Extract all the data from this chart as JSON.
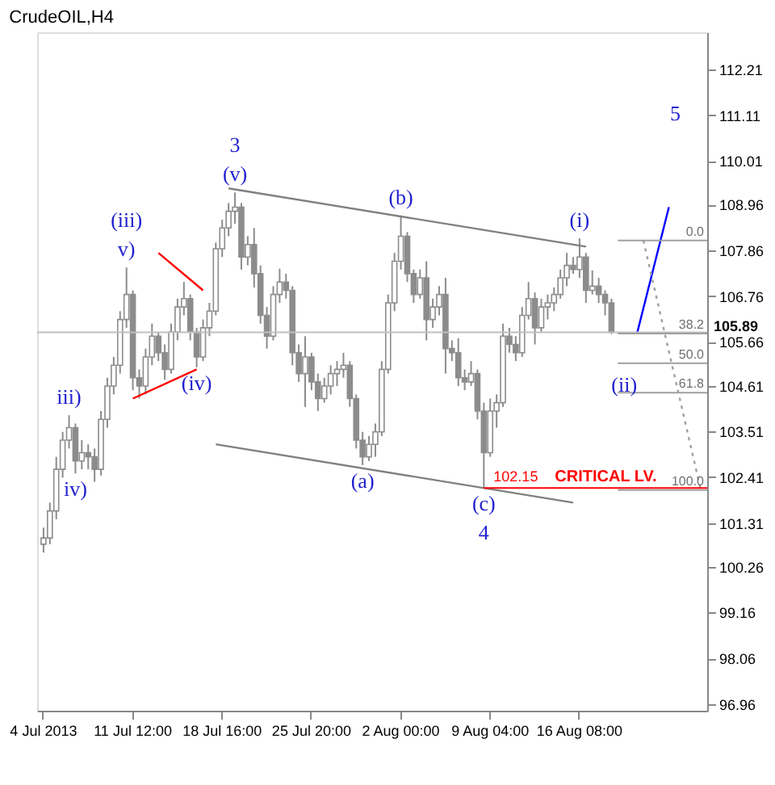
{
  "chart_data": {
    "type": "candlestick",
    "title": "CrudeOIL,H4",
    "color": "#8c8c8c",
    "categories": [
      "4 Jul 2013",
      null,
      null,
      null,
      null,
      null,
      null,
      null,
      null,
      null,
      null,
      null,
      null,
      null,
      "11 Jul 12:00",
      null,
      null,
      null,
      null,
      null,
      null,
      null,
      null,
      null,
      null,
      null,
      null,
      null,
      "18 Jul 16:00",
      null,
      null,
      null,
      null,
      null,
      null,
      null,
      null,
      null,
      null,
      null,
      null,
      null,
      "25 Jul 20:00",
      null,
      null,
      null,
      null,
      null,
      null,
      null,
      null,
      null,
      null,
      null,
      null,
      null,
      "2 Aug 00:00",
      null,
      null,
      null,
      null,
      null,
      null,
      null,
      null,
      null,
      null,
      null,
      null,
      null,
      "9 Aug 04:00",
      null,
      null,
      null,
      null,
      null,
      null,
      null,
      null,
      null,
      null,
      null,
      null,
      null,
      "16 Aug 08:00",
      null,
      null,
      null,
      null,
      null,
      null,
      null,
      null,
      null,
      null,
      null,
      null,
      null,
      null,
      null,
      null,
      null,
      null,
      null
    ],
    "ohlc": [
      [
        100.8,
        101.2,
        100.6,
        100.95
      ],
      [
        100.95,
        101.8,
        100.8,
        101.6
      ],
      [
        101.6,
        102.9,
        101.4,
        102.6
      ],
      [
        102.6,
        103.5,
        102.4,
        103.3
      ],
      [
        103.3,
        103.9,
        103.1,
        103.6
      ],
      [
        103.6,
        103.7,
        102.5,
        102.8
      ],
      [
        102.8,
        103.3,
        102.6,
        103.0
      ],
      [
        103.0,
        103.2,
        102.6,
        102.9
      ],
      [
        102.9,
        103.1,
        102.3,
        102.6
      ],
      [
        102.6,
        104.0,
        102.45,
        103.8
      ],
      [
        103.8,
        104.8,
        103.6,
        104.6
      ],
      [
        104.6,
        105.3,
        104.4,
        105.1
      ],
      [
        105.1,
        106.4,
        104.9,
        106.2
      ],
      [
        106.2,
        107.45,
        106.0,
        106.8
      ],
      [
        106.8,
        106.9,
        104.5,
        104.8
      ],
      [
        104.8,
        105.0,
        104.3,
        104.6
      ],
      [
        104.6,
        105.5,
        104.4,
        105.3
      ],
      [
        105.3,
        106.1,
        105.1,
        105.8
      ],
      [
        105.8,
        105.9,
        105.2,
        105.4
      ],
      [
        105.4,
        105.6,
        104.75,
        105.0
      ],
      [
        105.0,
        106.1,
        104.9,
        105.9
      ],
      [
        105.9,
        106.7,
        105.7,
        106.5
      ],
      [
        106.5,
        107.1,
        106.3,
        106.7
      ],
      [
        106.7,
        106.8,
        105.7,
        105.9
      ],
      [
        105.9,
        106.0,
        105.05,
        105.3
      ],
      [
        105.3,
        106.2,
        105.2,
        106.0
      ],
      [
        106.0,
        106.6,
        105.8,
        106.4
      ],
      [
        106.4,
        108.05,
        106.3,
        107.9
      ],
      [
        107.9,
        108.6,
        107.7,
        108.4
      ],
      [
        108.4,
        109.0,
        108.2,
        108.8
      ],
      [
        108.8,
        109.25,
        108.5,
        108.9
      ],
      [
        108.9,
        109.0,
        107.4,
        107.7
      ],
      [
        107.7,
        108.2,
        107.5,
        108.0
      ],
      [
        108.0,
        108.4,
        106.97,
        107.3
      ],
      [
        107.3,
        107.5,
        106.1,
        106.3
      ],
      [
        106.3,
        106.5,
        105.5,
        105.8
      ],
      [
        105.8,
        107.0,
        105.7,
        106.8
      ],
      [
        106.8,
        107.42,
        106.6,
        107.1
      ],
      [
        107.1,
        107.3,
        106.7,
        106.9
      ],
      [
        106.9,
        107.0,
        105.1,
        105.4
      ],
      [
        105.4,
        105.6,
        104.7,
        104.9
      ],
      [
        104.9,
        105.8,
        104.1,
        105.3
      ],
      [
        105.3,
        105.4,
        104.5,
        104.7
      ],
      [
        104.7,
        104.9,
        104.0,
        104.3
      ],
      [
        104.3,
        104.8,
        104.2,
        104.6
      ],
      [
        104.6,
        105.1,
        104.4,
        104.9
      ],
      [
        104.9,
        105.2,
        104.6,
        105.0
      ],
      [
        105.0,
        105.4,
        104.8,
        105.1
      ],
      [
        105.1,
        105.2,
        104.1,
        104.3
      ],
      [
        104.3,
        104.4,
        103.1,
        103.3
      ],
      [
        103.3,
        103.5,
        102.7,
        102.9
      ],
      [
        102.9,
        103.4,
        102.8,
        103.2
      ],
      [
        103.2,
        103.7,
        102.9,
        103.5
      ],
      [
        103.5,
        105.2,
        103.4,
        105.0
      ],
      [
        105.0,
        106.8,
        104.9,
        106.6
      ],
      [
        106.6,
        107.8,
        106.4,
        107.6
      ],
      [
        107.6,
        108.7,
        107.4,
        108.2
      ],
      [
        108.2,
        108.3,
        107.1,
        107.3
      ],
      [
        107.3,
        107.4,
        106.6,
        106.8
      ],
      [
        106.8,
        107.4,
        106.7,
        107.2
      ],
      [
        107.2,
        107.6,
        105.7,
        106.2
      ],
      [
        106.2,
        106.7,
        106.0,
        106.5
      ],
      [
        106.5,
        107.0,
        106.3,
        106.8
      ],
      [
        106.8,
        107.2,
        104.9,
        105.5
      ],
      [
        105.5,
        105.7,
        105.2,
        105.4
      ],
      [
        105.4,
        105.75,
        104.6,
        104.8
      ],
      [
        104.8,
        105.0,
        104.5,
        104.7
      ],
      [
        104.7,
        105.2,
        104.6,
        104.9
      ],
      [
        104.9,
        105.0,
        103.8,
        104.0
      ],
      [
        104.0,
        104.2,
        102.15,
        103.0
      ],
      [
        103.0,
        104.3,
        102.9,
        104.0
      ],
      [
        104.0,
        104.4,
        103.6,
        104.2
      ],
      [
        104.2,
        106.1,
        104.1,
        105.8
      ],
      [
        105.8,
        106.0,
        105.4,
        105.6
      ],
      [
        105.6,
        105.8,
        105.2,
        105.4
      ],
      [
        105.4,
        106.5,
        105.3,
        106.3
      ],
      [
        106.3,
        107.1,
        106.2,
        106.7
      ],
      [
        106.7,
        106.85,
        105.6,
        106.0
      ],
      [
        106.0,
        106.7,
        105.9,
        106.5
      ],
      [
        106.5,
        106.8,
        106.2,
        106.6
      ],
      [
        106.6,
        106.97,
        106.4,
        106.8
      ],
      [
        106.8,
        107.4,
        106.7,
        107.2
      ],
      [
        107.2,
        107.8,
        107.0,
        107.5
      ],
      [
        107.5,
        107.7,
        107.3,
        107.4
      ],
      [
        107.4,
        108.15,
        107.2,
        107.7
      ],
      [
        107.7,
        107.8,
        106.6,
        106.9
      ],
      [
        106.9,
        107.38,
        106.8,
        107.0
      ],
      [
        107.0,
        107.2,
        106.6,
        106.8
      ],
      [
        106.8,
        106.9,
        106.3,
        106.6
      ],
      [
        106.6,
        106.7,
        105.85,
        105.89
      ],
      null,
      null,
      null,
      null,
      null,
      null,
      null,
      null,
      null,
      null,
      null,
      null,
      null,
      null
    ],
    "series": [
      {
        "type": "line",
        "color": "#808080",
        "values": [
          null,
          null,
          null,
          null,
          null,
          null,
          null,
          null,
          null,
          null,
          null,
          null,
          null,
          null,
          null,
          null,
          null,
          null,
          null,
          null,
          null,
          null,
          null,
          null,
          null,
          null,
          null,
          null,
          null,
          109.35,
          null,
          null,
          null,
          null,
          null,
          null,
          null,
          null,
          null,
          null,
          null,
          null,
          null,
          null,
          null,
          null,
          null,
          null,
          null,
          null,
          null,
          null,
          null,
          null,
          null,
          null,
          null,
          null,
          null,
          null,
          null,
          null,
          null,
          null,
          null,
          null,
          null,
          null,
          null,
          null,
          null,
          null,
          null,
          null,
          null,
          null,
          null,
          null,
          null,
          null,
          null,
          null,
          null,
          null,
          null,
          107.95,
          null,
          null,
          null,
          null,
          null,
          null,
          null,
          null,
          null,
          null,
          null,
          null,
          null,
          null,
          null,
          null,
          null,
          null
        ]
      },
      {
        "type": "line",
        "color": "#808080",
        "values": [
          null,
          null,
          null,
          null,
          null,
          null,
          null,
          null,
          null,
          null,
          null,
          null,
          null,
          null,
          null,
          null,
          null,
          null,
          null,
          null,
          null,
          null,
          null,
          null,
          null,
          null,
          null,
          103.2,
          null,
          null,
          null,
          null,
          null,
          null,
          null,
          null,
          null,
          null,
          null,
          null,
          null,
          null,
          null,
          null,
          null,
          null,
          null,
          null,
          null,
          null,
          null,
          null,
          null,
          null,
          null,
          null,
          null,
          null,
          null,
          null,
          null,
          null,
          null,
          null,
          null,
          null,
          null,
          null,
          null,
          null,
          null,
          null,
          null,
          null,
          null,
          null,
          null,
          null,
          null,
          null,
          null,
          null,
          null,
          101.8,
          null,
          null,
          null,
          null,
          null,
          null,
          null,
          null,
          null,
          null,
          null,
          null,
          null,
          null,
          null,
          null,
          null,
          null,
          null,
          null
        ]
      },
      {
        "type": "line",
        "color": "#ff0000",
        "values": [
          null,
          null,
          null,
          null,
          null,
          null,
          null,
          null,
          null,
          null,
          null,
          null,
          null,
          null,
          null,
          null,
          null,
          null,
          107.8,
          null,
          null,
          null,
          null,
          null,
          null,
          106.9,
          null,
          null,
          null,
          null,
          null,
          null,
          null,
          null,
          null,
          null,
          null,
          null,
          null,
          null,
          null,
          null,
          null,
          null,
          null,
          null,
          null,
          null,
          null,
          null,
          null,
          null,
          null,
          null,
          null,
          null,
          null,
          null,
          null,
          null,
          null,
          null,
          null,
          null,
          null,
          null,
          null,
          null,
          null,
          null,
          null,
          null,
          null,
          null,
          null,
          null,
          null,
          null,
          null,
          null,
          null,
          null,
          null,
          null,
          null,
          null,
          null,
          null,
          null,
          null,
          null,
          null,
          null,
          null,
          null,
          null,
          null,
          null,
          null,
          null,
          null,
          null,
          null,
          null
        ]
      },
      {
        "type": "line",
        "color": "#ff0000",
        "values": [
          null,
          null,
          null,
          null,
          null,
          null,
          null,
          null,
          null,
          null,
          null,
          null,
          null,
          null,
          104.3,
          null,
          null,
          null,
          null,
          null,
          null,
          null,
          null,
          null,
          105.0,
          null,
          null,
          null,
          null,
          null,
          null,
          null,
          null,
          null,
          null,
          null,
          null,
          null,
          null,
          null,
          null,
          null,
          null,
          null,
          null,
          null,
          null,
          null,
          null,
          null,
          null,
          null,
          null,
          null,
          null,
          null,
          null,
          null,
          null,
          null,
          null,
          null,
          null,
          null,
          null,
          null,
          null,
          null,
          null,
          null,
          null,
          null,
          null,
          null,
          null,
          null,
          null,
          null,
          null,
          null,
          null,
          null,
          null,
          null,
          null,
          null,
          null,
          null,
          null,
          null,
          null,
          null,
          null,
          null,
          null,
          null,
          null,
          null,
          null,
          null,
          null,
          null,
          null,
          null
        ]
      },
      {
        "type": "line",
        "color": "#0000ff",
        "values": [
          null,
          null,
          null,
          null,
          null,
          null,
          null,
          null,
          null,
          null,
          null,
          null,
          null,
          null,
          null,
          null,
          null,
          null,
          null,
          null,
          null,
          null,
          null,
          null,
          null,
          null,
          null,
          null,
          null,
          null,
          null,
          null,
          null,
          null,
          null,
          null,
          null,
          null,
          null,
          null,
          null,
          null,
          null,
          null,
          null,
          null,
          null,
          null,
          null,
          null,
          null,
          null,
          null,
          null,
          null,
          null,
          null,
          null,
          null,
          null,
          null,
          null,
          null,
          null,
          null,
          null,
          null,
          null,
          null,
          null,
          null,
          null,
          null,
          null,
          null,
          null,
          null,
          null,
          null,
          null,
          null,
          null,
          null,
          null,
          null,
          null,
          null,
          null,
          null,
          null,
          null,
          null,
          null,
          105.86,
          null,
          null,
          null,
          null,
          108.9,
          null,
          null,
          null,
          null,
          null
        ]
      },
      {
        "type": "line",
        "color": "#a0a0a0",
        "line_style": "dotted",
        "values": [
          null,
          null,
          null,
          null,
          null,
          null,
          null,
          null,
          null,
          null,
          null,
          null,
          null,
          null,
          null,
          null,
          null,
          null,
          null,
          null,
          null,
          null,
          null,
          null,
          null,
          null,
          null,
          null,
          null,
          null,
          null,
          null,
          null,
          null,
          null,
          null,
          null,
          null,
          null,
          null,
          null,
          null,
          null,
          null,
          null,
          null,
          null,
          null,
          null,
          null,
          null,
          null,
          null,
          null,
          null,
          null,
          null,
          null,
          null,
          null,
          null,
          null,
          null,
          null,
          null,
          null,
          null,
          null,
          null,
          null,
          null,
          null,
          null,
          null,
          null,
          null,
          null,
          null,
          null,
          null,
          null,
          null,
          null,
          null,
          null,
          null,
          null,
          null,
          null,
          null,
          null,
          null,
          null,
          null,
          108.1,
          null,
          null,
          null,
          null,
          null,
          null,
          null,
          null,
          102.1
        ]
      }
    ],
    "ylim": [
      96.8,
      113.1
    ],
    "yticks": [
      112.21,
      111.11,
      110.01,
      108.96,
      107.86,
      106.76,
      105.66,
      104.61,
      103.51,
      102.41,
      101.31,
      100.26,
      99.16,
      98.06,
      96.96
    ],
    "grid": false,
    "ref_lines": [
      {
        "axis": "y",
        "value": 105.89,
        "label": "105.89",
        "color": "#c0c0c0"
      },
      {
        "axis": "y",
        "value": 108.1,
        "color": "#a0a0a0"
      },
      {
        "axis": "y",
        "value": 105.86,
        "color": "#a0a0a0"
      },
      {
        "axis": "y",
        "value": 105.15,
        "color": "#a0a0a0"
      },
      {
        "axis": "y",
        "value": 104.44,
        "color": "#a0a0a0"
      },
      {
        "axis": "y",
        "value": 102.1,
        "color": "#a0a0a0"
      },
      {
        "axis": "y",
        "value": 102.15,
        "label": "102.15",
        "color": "#ff0000"
      }
    ],
    "annotations": [
      {
        "text": "(v)",
        "y": 109.25
      },
      {
        "text": "3",
        "y": 109.25
      },
      {
        "text": "v)",
        "y": 107.45
      },
      {
        "text": "(iii)",
        "y": 107.45
      },
      {
        "text": "iii)",
        "y": 103.9
      },
      {
        "text": "iv)",
        "y": 102.5
      },
      {
        "text": "(iv)",
        "y": 105.05
      },
      {
        "text": "(a)",
        "y": 102.7
      },
      {
        "text": "(b)",
        "y": 108.7
      },
      {
        "text": "(c)",
        "y": 102.15
      },
      {
        "text": "4",
        "y": 102.15
      },
      {
        "text": "(i)",
        "y": 108.15
      },
      {
        "text": "0.0",
        "y": 108.1
      },
      {
        "text": "38.2",
        "y": 105.86
      },
      {
        "text": "50.0",
        "y": 105.15
      },
      {
        "text": "61.8",
        "y": 104.44
      },
      {
        "text": "100.0",
        "y": 102.1
      },
      "(ii)",
      "5",
      {
        "text": "CRITICAL LV.",
        "y": 102.15
      }
    ]
  }
}
